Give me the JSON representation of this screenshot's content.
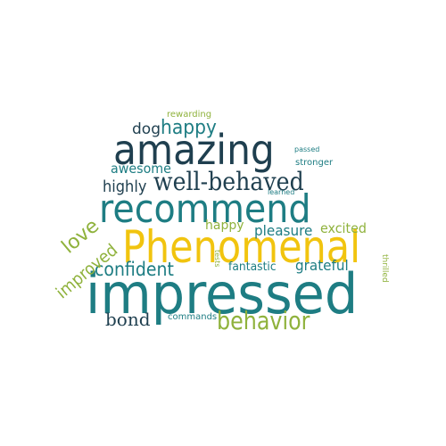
{
  "palette": {
    "dark_navy": "#1f3f4f",
    "teal": "#1e7d83",
    "olive_green": "#8fb23c",
    "yellow": "#f1c40f",
    "light_teal": "#4aa8a0",
    "background": "#ffffff"
  },
  "words": [
    {
      "text": "impressed",
      "color": "#1e7d83"
    },
    {
      "text": "Phenomenal",
      "color": "#f1c40f"
    },
    {
      "text": "recommend",
      "color": "#1e7d83"
    },
    {
      "text": "amazing",
      "color": "#1f3f4f"
    },
    {
      "text": "well-behaved",
      "color": "#1f3f4f"
    },
    {
      "text": "behavior",
      "color": "#8fb23c"
    },
    {
      "text": "confident",
      "color": "#1e7d83"
    },
    {
      "text": "happy",
      "color": "#1e7d83"
    },
    {
      "text": "love",
      "color": "#8fb23c"
    },
    {
      "text": "improved",
      "color": "#8fb23c"
    },
    {
      "text": "highly",
      "color": "#1f3f4f"
    },
    {
      "text": "awesome",
      "color": "#1e7d83"
    },
    {
      "text": "bond",
      "color": "#1f3f4f"
    },
    {
      "text": "dog",
      "color": "#1f3f4f"
    },
    {
      "text": "pleasure",
      "color": "#1e7d83"
    },
    {
      "text": "grateful",
      "color": "#1e7d83"
    },
    {
      "text": "excited",
      "color": "#8fb23c"
    },
    {
      "text": "fantastic",
      "color": "#1e7d83"
    },
    {
      "text": "happy",
      "color": "#8fb23c"
    },
    {
      "text": "rewarding",
      "color": "#8fb23c"
    },
    {
      "text": "stronger",
      "color": "#1e7d83"
    },
    {
      "text": "passed",
      "color": "#1e7d83"
    },
    {
      "text": "learned",
      "color": "#1e7d83"
    },
    {
      "text": "commands",
      "color": "#1e7d83"
    },
    {
      "text": "thrilled",
      "color": "#8fb23c"
    },
    {
      "text": "tests",
      "color": "#8fb23c"
    }
  ]
}
